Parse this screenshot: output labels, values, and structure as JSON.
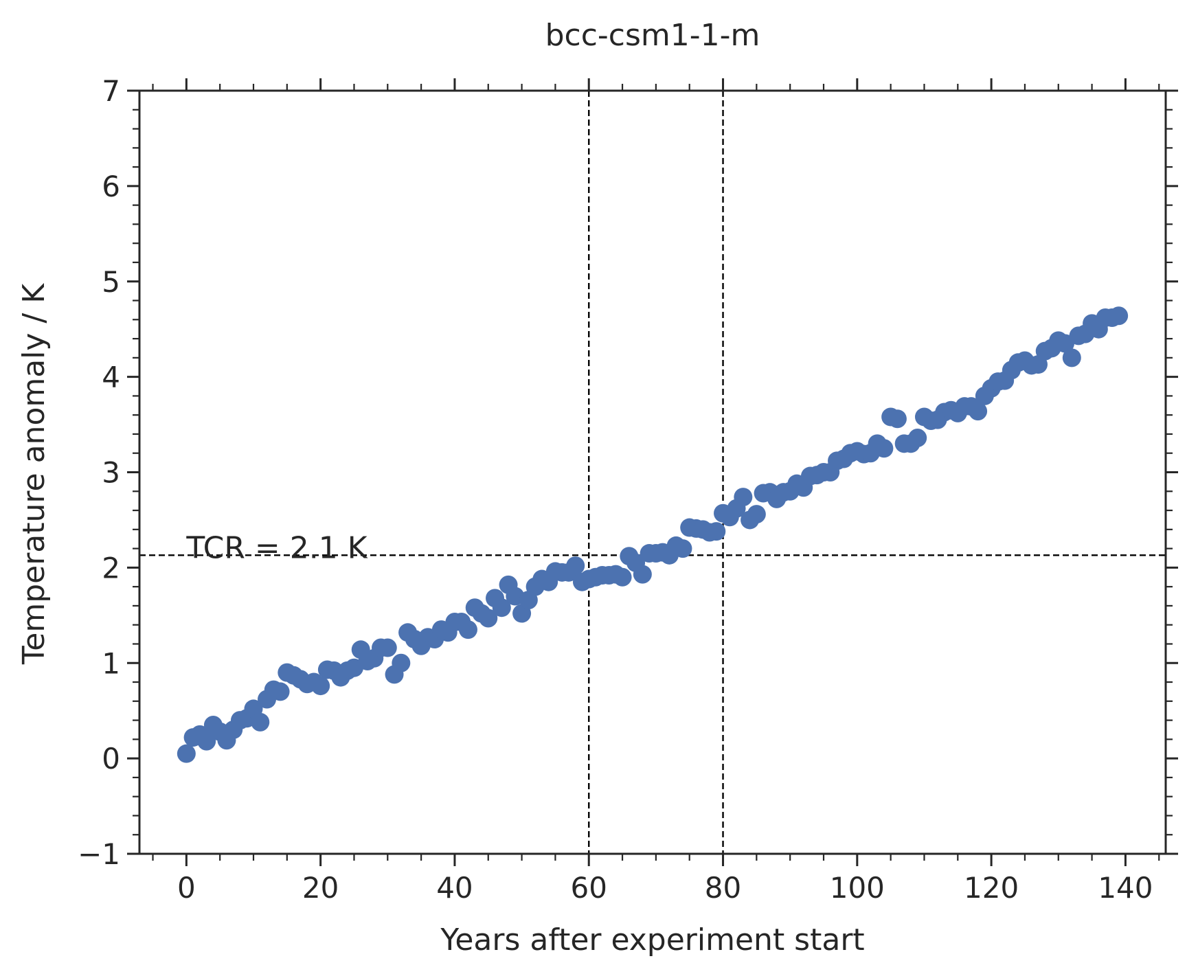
{
  "chart_data": {
    "type": "scatter",
    "title": "bcc-csm1-1-m",
    "xlabel": "Years after experiment start",
    "ylabel": "Temperature anomaly / K",
    "xlim": [
      -7,
      146
    ],
    "ylim": [
      -1,
      7
    ],
    "xticks": [
      0,
      20,
      40,
      60,
      80,
      100,
      120,
      140
    ],
    "yticks": [
      -1,
      0,
      1,
      2,
      3,
      4,
      5,
      6,
      7
    ],
    "ytick_labels": [
      "−1",
      "0",
      "1",
      "2",
      "3",
      "4",
      "5",
      "6",
      "7"
    ],
    "grid": false,
    "marker_color": "#4c72b0",
    "reference_lines": {
      "vertical": [
        60,
        80
      ],
      "horizontal": 2.13,
      "color": "#000000",
      "style": "dashed"
    },
    "annotation": {
      "text": "TCR = 2.1 K",
      "x": 0,
      "y": 2.2
    },
    "series": [
      {
        "x": [
          0,
          1,
          2,
          3,
          4,
          5,
          6,
          7,
          8,
          9,
          10,
          11,
          12,
          13,
          14,
          15,
          16,
          17,
          18,
          19,
          20,
          21,
          22,
          23,
          24,
          25,
          26,
          27,
          28,
          29,
          30,
          31,
          32,
          33,
          34,
          35,
          36,
          37,
          38,
          39,
          40,
          41,
          42,
          43,
          44,
          45,
          46,
          47,
          48,
          49,
          50,
          51,
          52,
          53,
          54,
          55,
          56,
          57,
          58,
          59,
          60,
          61,
          62,
          63,
          64,
          65,
          66,
          67,
          68,
          69,
          70,
          71,
          72,
          73,
          74,
          75,
          76,
          77,
          78,
          79,
          80,
          81,
          82,
          83,
          84,
          85,
          86,
          87,
          88,
          89,
          90,
          91,
          92,
          93,
          94,
          95,
          96,
          97,
          98,
          99,
          100,
          101,
          102,
          103,
          104,
          105,
          106,
          107,
          108,
          109,
          110,
          111,
          112,
          113,
          114,
          115,
          116,
          117,
          118,
          119,
          120,
          121,
          122,
          123,
          124,
          125,
          126,
          127,
          128,
          129,
          130,
          131,
          132,
          133,
          134,
          135,
          136,
          137,
          138,
          139
        ],
        "y": [
          0.05,
          0.22,
          0.25,
          0.18,
          0.35,
          0.28,
          0.19,
          0.3,
          0.4,
          0.42,
          0.52,
          0.38,
          0.62,
          0.72,
          0.7,
          0.9,
          0.87,
          0.83,
          0.78,
          0.8,
          0.76,
          0.93,
          0.92,
          0.85,
          0.92,
          0.95,
          1.14,
          1.02,
          1.05,
          1.16,
          1.16,
          0.88,
          1.0,
          1.32,
          1.25,
          1.18,
          1.27,
          1.25,
          1.35,
          1.32,
          1.43,
          1.43,
          1.35,
          1.58,
          1.52,
          1.47,
          1.68,
          1.58,
          1.82,
          1.7,
          1.52,
          1.66,
          1.8,
          1.88,
          1.85,
          1.96,
          1.95,
          1.95,
          2.02,
          1.85,
          1.88,
          1.9,
          1.92,
          1.92,
          1.93,
          1.9,
          2.12,
          2.05,
          1.93,
          2.15,
          2.15,
          2.16,
          2.13,
          2.23,
          2.2,
          2.42,
          2.41,
          2.4,
          2.37,
          2.38,
          2.57,
          2.53,
          2.62,
          2.74,
          2.5,
          2.56,
          2.78,
          2.79,
          2.72,
          2.79,
          2.8,
          2.88,
          2.84,
          2.96,
          2.97,
          3.0,
          3.0,
          3.12,
          3.14,
          3.2,
          3.22,
          3.19,
          3.2,
          3.3,
          3.25,
          3.58,
          3.56,
          3.3,
          3.3,
          3.36,
          3.58,
          3.54,
          3.55,
          3.63,
          3.65,
          3.62,
          3.69,
          3.69,
          3.64,
          3.8,
          3.88,
          3.95,
          3.96,
          4.07,
          4.15,
          4.17,
          4.12,
          4.13,
          4.27,
          4.3,
          4.38,
          4.35,
          4.2,
          4.43,
          4.45,
          4.56,
          4.5,
          4.62,
          4.62,
          4.64
        ]
      }
    ]
  }
}
